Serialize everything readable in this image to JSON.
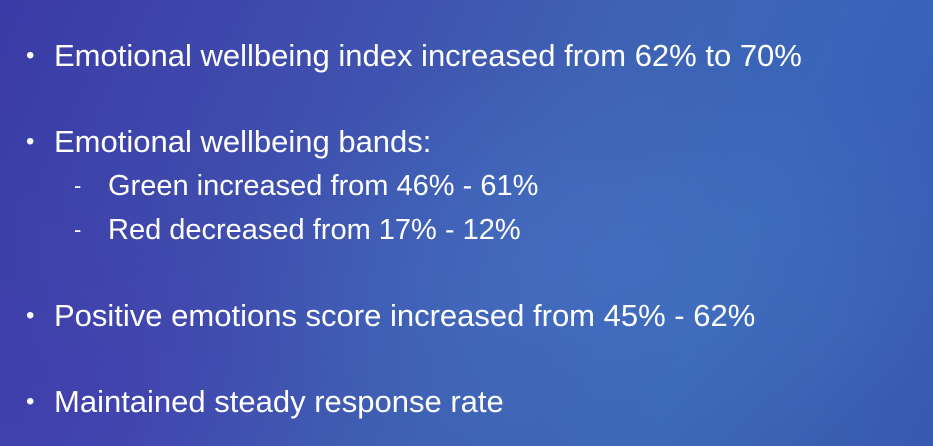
{
  "bullets": [
    {
      "marker": "•",
      "text": "Emotional wellbeing index  increased from 62% to 70%"
    },
    {
      "marker": "•",
      "text": "Emotional wellbeing bands:"
    },
    {
      "marker": "•",
      "text": "Positive emotions score increased from 45% - 62%"
    },
    {
      "marker": "•",
      "text": "Maintained steady response rate"
    }
  ],
  "sub_bullets": [
    {
      "marker": "-",
      "text": "Green increased from 46% - 61%"
    },
    {
      "marker": "-",
      "text": "Red decreased from 17% - 12%"
    }
  ],
  "colors": {
    "text": "#ffffff",
    "background_left": "#3b3aa6",
    "background_right": "#3c68b7"
  }
}
